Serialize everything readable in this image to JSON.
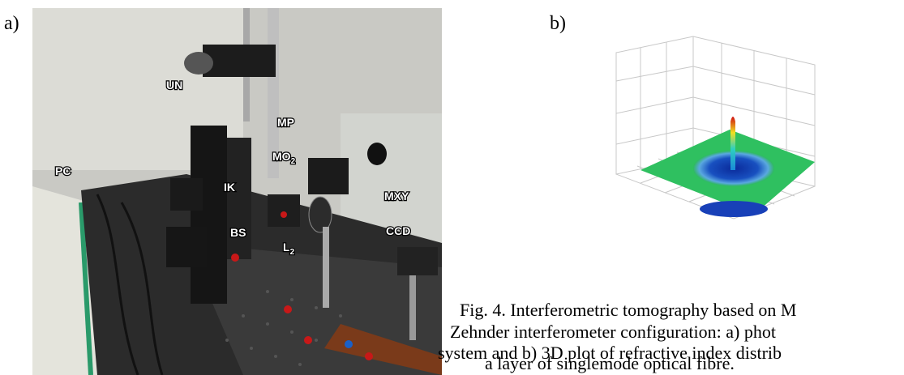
{
  "panels": {
    "a": {
      "label": "a)",
      "photo_labels": [
        {
          "text": "UN"
        },
        {
          "text": "MP"
        },
        {
          "text": "MO",
          "sub": "2"
        },
        {
          "text": "IK"
        },
        {
          "text": "MXY"
        },
        {
          "text": "BS"
        },
        {
          "text": "L",
          "sub": "2"
        },
        {
          "text": "CCD"
        },
        {
          "text": "PC"
        }
      ]
    },
    "b": {
      "label": "b)"
    }
  },
  "caption": {
    "lines": [
      "Fig. 4. Interferometric tomography based on M",
      "Zehnder interferometer configuration: a)  phot",
      "system and b) 3D plot of refractive index distrib",
      "a  layer of singlemode optical fibre."
    ]
  }
}
